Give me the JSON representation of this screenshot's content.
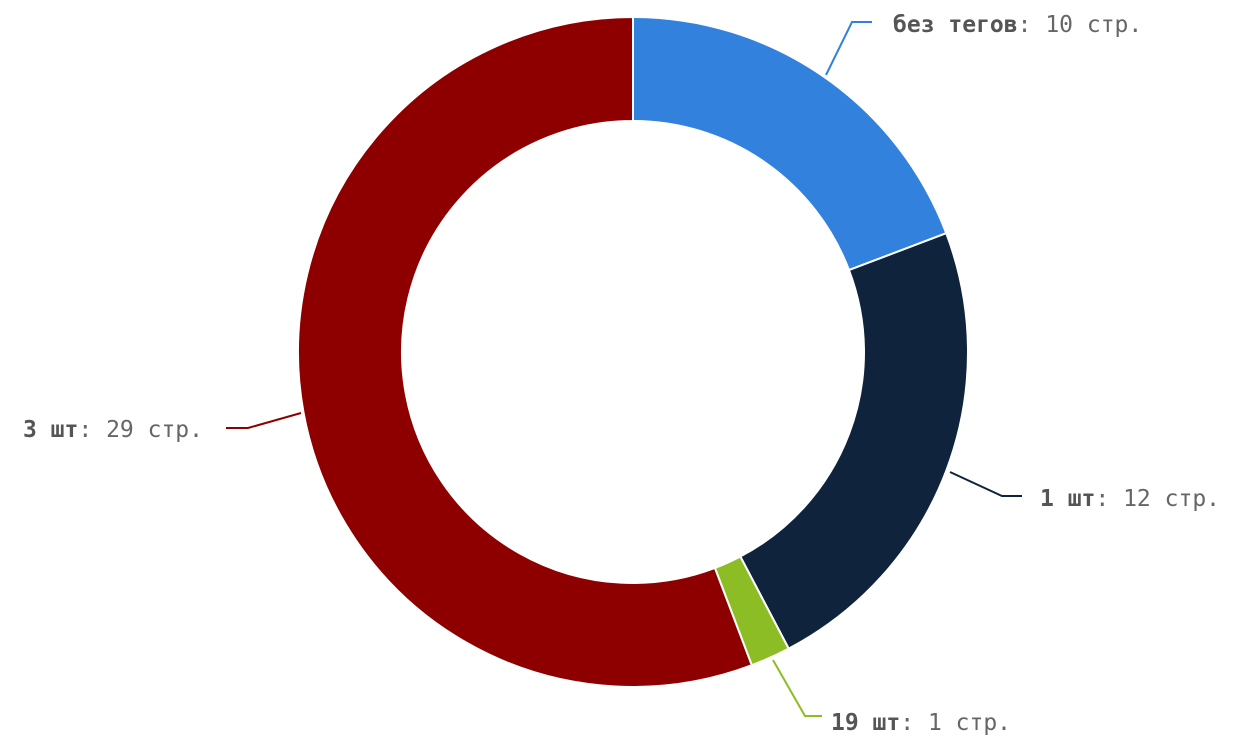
{
  "chart_data": {
    "type": "pie",
    "donut": true,
    "unit": "стр.",
    "separator": ": ",
    "slices": [
      {
        "name": "без тегов",
        "value": 10,
        "color": "#3281dc"
      },
      {
        "name": "1 шт",
        "value": 12,
        "color": "#0f233c"
      },
      {
        "name": "19 шт",
        "value": 1,
        "color": "#8dbd24"
      },
      {
        "name": "3 шт",
        "value": 29,
        "color": "#8e0000"
      }
    ]
  }
}
